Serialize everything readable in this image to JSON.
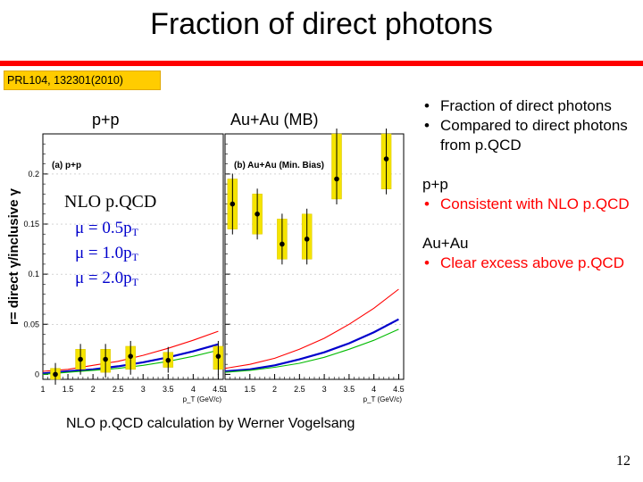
{
  "slide": {
    "title": "Fraction of direct photons",
    "reference": "PRL104, 132301(2010)",
    "page_number": "12",
    "credit": "NLO p.QCD calculation by Werner Vogelsang"
  },
  "figure": {
    "panel_left_label": "p+p",
    "panel_right_label": "Au+Au (MB)",
    "nlo_label": "NLO p.QCD",
    "mu_lines": [
      {
        "text": "μ = 0.5p",
        "sub": "T"
      },
      {
        "text": "μ = 1.0p",
        "sub": "T"
      },
      {
        "text": "μ = 2.0p",
        "sub": "T"
      }
    ]
  },
  "right": {
    "bullets1": [
      "Fraction of direct photons",
      "Compared to direct photons from p.QCD"
    ],
    "pp_heading": "p+p",
    "pp_bullets": [
      "Consistent with NLO p.QCD"
    ],
    "auau_heading": "Au+Au",
    "auau_bullets": [
      "Clear excess above p.QCD"
    ]
  },
  "chart_data": {
    "type": "scatter",
    "ylabel": "r= direct γ/inclusive γ",
    "yticks": [
      "0",
      "0.05",
      "0.1",
      "0.15",
      "0.2"
    ],
    "ylim": [
      -0.005,
      0.24
    ],
    "panels": [
      {
        "label": "(a) p+p",
        "xlabel": "p_T (GeV/c)",
        "xticks": [
          "1",
          "1.5",
          "2",
          "2.5",
          "3",
          "3.5",
          "4",
          "4.5"
        ],
        "xlim": [
          1,
          4.6
        ],
        "points": [
          {
            "x": 1.25,
            "y": 0.0,
            "lo": -0.005,
            "hi": 0.006
          },
          {
            "x": 1.75,
            "y": 0.015,
            "lo": 0.005,
            "hi": 0.025
          },
          {
            "x": 2.25,
            "y": 0.015,
            "lo": 0.002,
            "hi": 0.025
          },
          {
            "x": 2.75,
            "y": 0.018,
            "lo": 0.005,
            "hi": 0.028
          },
          {
            "x": 3.5,
            "y": 0.014,
            "lo": 0.007,
            "hi": 0.022
          },
          {
            "x": 4.5,
            "y": 0.018,
            "lo": 0.005,
            "hi": 0.028
          }
        ],
        "curves": [
          {
            "scale": "μ = 0.5pT",
            "color": "#ff0000",
            "x": [
              1.0,
              1.5,
              2.0,
              2.5,
              3.0,
              3.5,
              4.0,
              4.5
            ],
            "y": [
              0.003,
              0.005,
              0.009,
              0.013,
              0.019,
              0.026,
              0.034,
              0.043
            ]
          },
          {
            "scale": "μ = 1.0pT",
            "color": "#0000cc",
            "x": [
              1.0,
              1.5,
              2.0,
              2.5,
              3.0,
              3.5,
              4.0,
              4.5
            ],
            "y": [
              0.001,
              0.003,
              0.005,
              0.008,
              0.012,
              0.017,
              0.023,
              0.03
            ]
          },
          {
            "scale": "μ = 2.0pT",
            "color": "#00bb00",
            "x": [
              1.0,
              1.5,
              2.0,
              2.5,
              3.0,
              3.5,
              4.0,
              4.5
            ],
            "y": [
              0.0,
              0.002,
              0.004,
              0.006,
              0.009,
              0.013,
              0.018,
              0.024
            ]
          }
        ]
      },
      {
        "label": "(b) Au+Au (Min. Bias)",
        "xlabel": "p_T (GeV/c)",
        "xticks": [
          "1",
          "1.5",
          "2",
          "2.5",
          "3",
          "3.5",
          "4",
          "4.5"
        ],
        "xlim": [
          1,
          4.6
        ],
        "points": [
          {
            "x": 1.15,
            "y": 0.17,
            "lo": 0.145,
            "hi": 0.195
          },
          {
            "x": 1.65,
            "y": 0.16,
            "lo": 0.14,
            "hi": 0.18
          },
          {
            "x": 2.15,
            "y": 0.13,
            "lo": 0.115,
            "hi": 0.155
          },
          {
            "x": 2.65,
            "y": 0.135,
            "lo": 0.115,
            "hi": 0.16
          },
          {
            "x": 3.25,
            "y": 0.195,
            "lo": 0.175,
            "hi": 0.24
          },
          {
            "x": 4.25,
            "y": 0.215,
            "lo": 0.185,
            "hi": 0.24
          }
        ],
        "curves": [
          {
            "scale": "μ = 0.5pT",
            "color": "#ff0000",
            "x": [
              1.0,
              1.5,
              2.0,
              2.5,
              3.0,
              3.5,
              4.0,
              4.5
            ],
            "y": [
              0.006,
              0.01,
              0.016,
              0.025,
              0.036,
              0.05,
              0.066,
              0.085
            ]
          },
          {
            "scale": "μ = 1.0pT",
            "color": "#0000cc",
            "x": [
              1.0,
              1.5,
              2.0,
              2.5,
              3.0,
              3.5,
              4.0,
              4.5
            ],
            "y": [
              0.003,
              0.005,
              0.009,
              0.015,
              0.022,
              0.031,
              0.042,
              0.055
            ]
          },
          {
            "scale": "μ = 2.0pT",
            "color": "#00bb00",
            "x": [
              1.0,
              1.5,
              2.0,
              2.5,
              3.0,
              3.5,
              4.0,
              4.5
            ],
            "y": [
              0.002,
              0.004,
              0.007,
              0.011,
              0.017,
              0.025,
              0.034,
              0.045
            ]
          }
        ]
      }
    ]
  }
}
